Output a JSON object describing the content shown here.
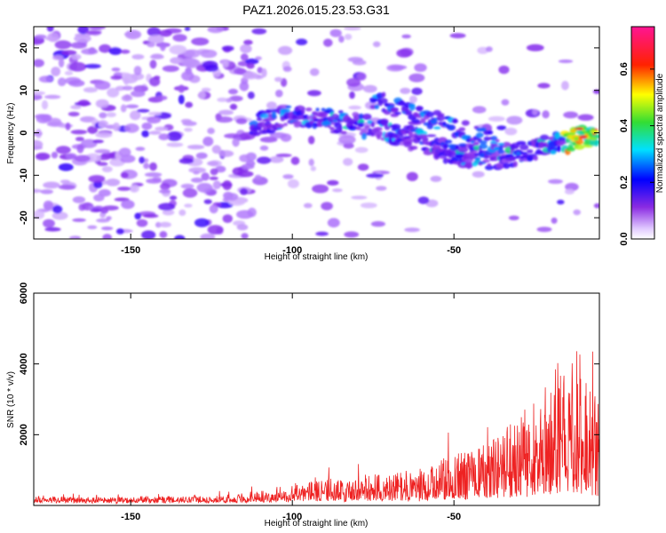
{
  "title": "PAZ1.2026.015.23.53.G31",
  "colors": {
    "snr_line": "#ee2222"
  },
  "chart_data": [
    {
      "type": "heatmap",
      "title": "PAZ1.2026.015.23.53.G31",
      "xlabel": "Height of straight line (km)",
      "ylabel": "Frequency (Hz)",
      "xlim": [
        -180,
        -5
      ],
      "ylim": [
        -25,
        25
      ],
      "xticks": [
        -150,
        -100,
        -50
      ],
      "yticks": [
        -20,
        -10,
        0,
        10,
        20
      ],
      "colorbar": {
        "label": "Normalized spectral amplitude",
        "range": [
          0,
          0.75
        ],
        "ticks": [
          0.0,
          0.2,
          0.4,
          0.6
        ],
        "tick_labels": [
          "0.0",
          "0.2",
          "0.4",
          "0.6"
        ],
        "colormap": "rainbow (white-violet-blue-cyan-green-yellow-red-magenta)"
      },
      "ridge": {
        "description": "main signal track: frequency vs height",
        "x": [
          -112,
          -100,
          -90,
          -80,
          -70,
          -60,
          -50,
          -40,
          -30,
          -20,
          -10,
          -5
        ],
        "y": [
          2,
          4,
          3,
          2,
          0,
          -2,
          -5,
          -6,
          -5,
          -3,
          -1,
          0
        ]
      },
      "secondary_ridge": {
        "x": [
          -75,
          -65,
          -55,
          -45,
          -35
        ],
        "y": [
          8,
          5,
          3,
          0,
          -3
        ]
      }
    },
    {
      "type": "line",
      "xlabel": "Height of straight line (km)",
      "ylabel": "SNR (10 * v/v)",
      "xlim": [
        -180,
        -5
      ],
      "ylim": [
        0,
        6000
      ],
      "xticks": [
        -150,
        -100,
        -50
      ],
      "yticks": [
        2000,
        4000,
        6000
      ],
      "series": [
        {
          "x": [
            -180,
            -160,
            -140,
            -120,
            -110,
            -100,
            -90,
            -80,
            -70,
            -60,
            -50,
            -40,
            -35,
            -30,
            -25,
            -20,
            -15,
            -10,
            -5
          ],
          "y": [
            150,
            150,
            160,
            180,
            300,
            500,
            600,
            700,
            750,
            900,
            1200,
            1500,
            1800,
            2200,
            2600,
            3200,
            4000,
            3200,
            2500
          ]
        }
      ]
    }
  ]
}
